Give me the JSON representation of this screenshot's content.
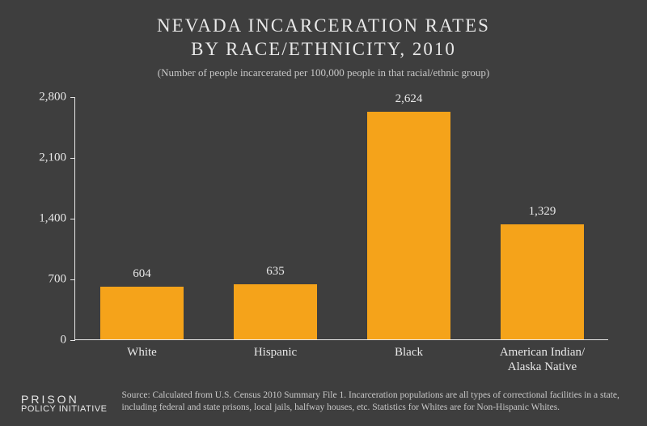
{
  "title_line1": "NEVADA INCARCERATION RATES",
  "title_line2": "BY RACE/ETHNICITY, 2010",
  "subtitle": "(Number of people incarcerated per 100,000 people in that racial/ethnic group)",
  "chart": {
    "type": "bar",
    "categories": [
      "White",
      "Hispanic",
      "Black",
      "American Indian/\nAlaska Native"
    ],
    "values": [
      604,
      635,
      2624,
      1329
    ],
    "value_labels": [
      "604",
      "635",
      "2,624",
      "1,329"
    ],
    "bar_color": "#f5a31a",
    "axis_color": "#e8e8e8",
    "text_color": "#e8e8e8",
    "background_color": "#3e3e3e",
    "ylim": [
      0,
      2800
    ],
    "yticks": [
      0,
      700,
      1400,
      2100,
      2800
    ],
    "ytick_labels": [
      "0",
      "700",
      "1,400",
      "2,100",
      "2,800"
    ],
    "bar_width_ratio": 0.62,
    "label_fontsize": 15,
    "title_fontsize": 23
  },
  "logo": {
    "line1": "PRISON",
    "line2": "POLICY INITIATIVE"
  },
  "source": "Source: Calculated from U.S. Census 2010 Summary File 1. Incarceration populations are all types of correctional facilities in a state, including federal and state prisons, local jails, halfway houses, etc. Statistics for Whites are for Non-Hispanic Whites."
}
